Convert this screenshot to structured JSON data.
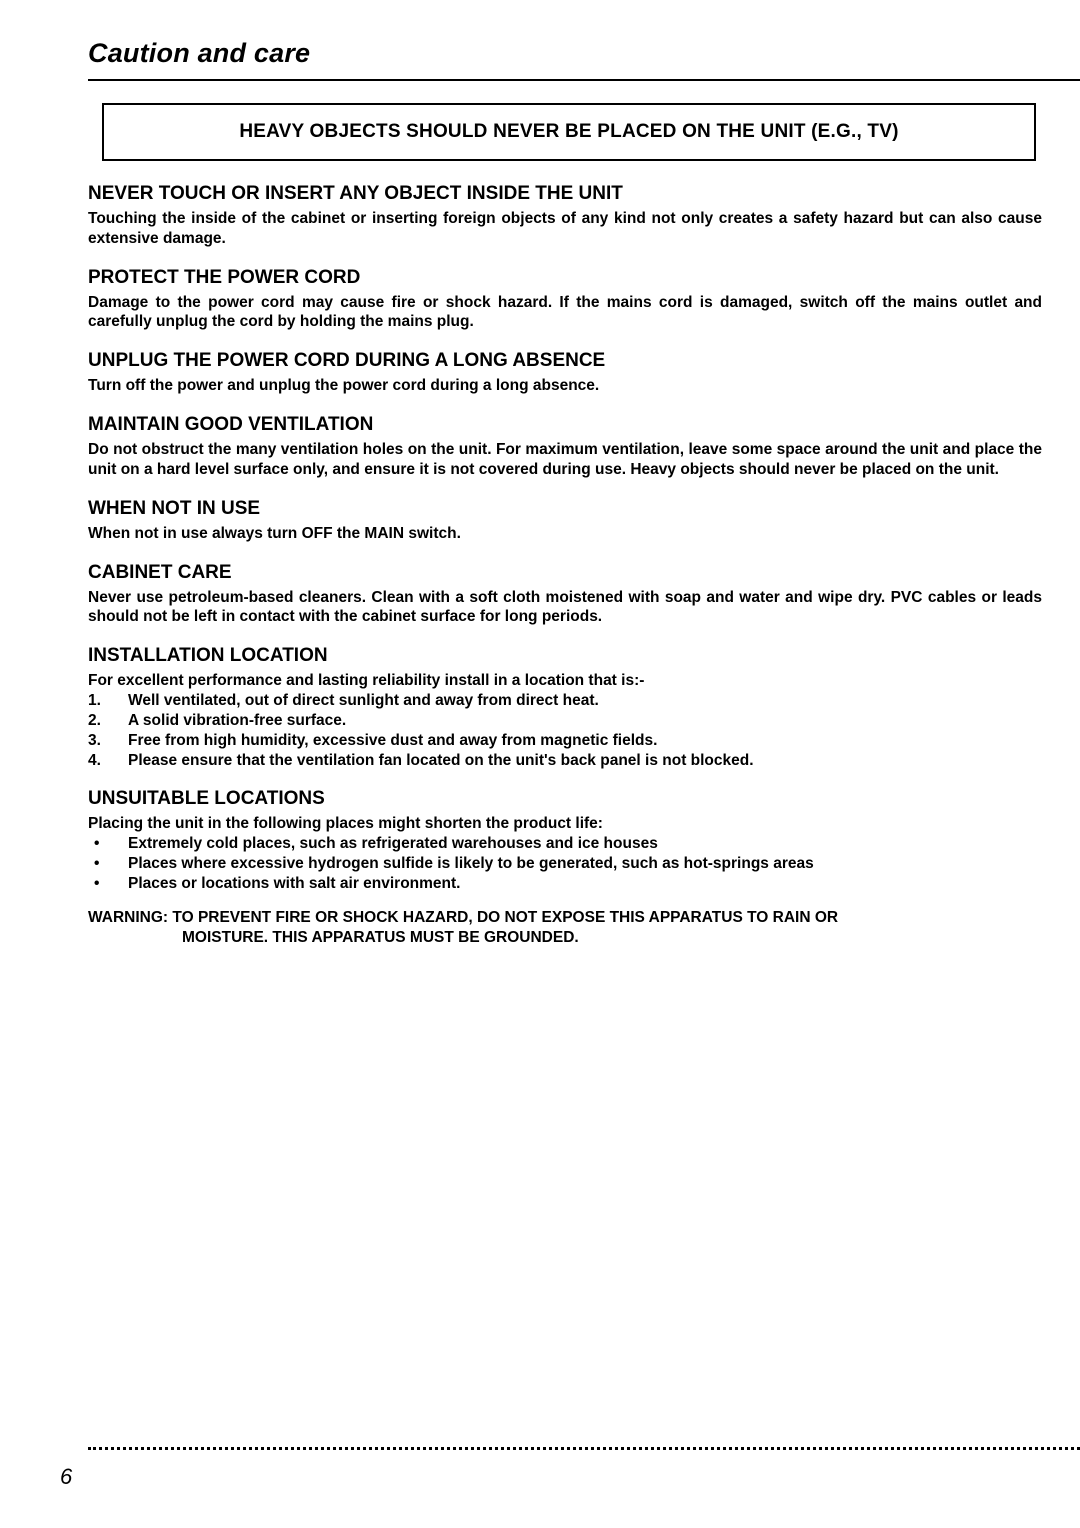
{
  "page": {
    "title": "Caution and care",
    "number": "6"
  },
  "boxed_notice": "HEAVY OBJECTS SHOULD NEVER BE PLACED ON THE UNIT (E.G., TV)",
  "sections": {
    "never_touch": {
      "heading": "NEVER TOUCH OR INSERT ANY OBJECT INSIDE THE UNIT",
      "body": "Touching the inside of the cabinet or inserting foreign objects of any kind not only creates a safety hazard but can also cause extensive damage."
    },
    "protect_cord": {
      "heading": "PROTECT THE POWER CORD",
      "body": "Damage to the power cord may cause fire or shock hazard.  If the mains cord is damaged, switch off the mains outlet and carefully unplug the cord by holding the mains plug."
    },
    "unplug": {
      "heading": "UNPLUG THE POWER CORD DURING A LONG ABSENCE",
      "body": "Turn off the power and unplug the power cord during a long absence."
    },
    "ventilation": {
      "heading": "MAINTAIN GOOD VENTILATION",
      "body": "Do not obstruct the many ventilation holes on the unit.  For maximum ventilation, leave some space around the unit and place the unit on a hard level surface only, and ensure it is not covered during use.  Heavy objects should never be placed on the unit."
    },
    "not_in_use": {
      "heading": "WHEN NOT IN USE",
      "body": "When not in use always turn OFF the MAIN switch."
    },
    "cabinet": {
      "heading": "CABINET CARE",
      "body": "Never use petroleum-based cleaners.  Clean with a soft cloth moistened with soap and water and wipe dry. PVC cables or leads should not be left in contact with the cabinet surface for long periods."
    },
    "install": {
      "heading": "INSTALLATION LOCATION",
      "intro": "For excellent performance and lasting reliability install in a location that is:-",
      "items": [
        "Well ventilated, out of direct sunlight and away from direct heat.",
        "A solid vibration-free surface.",
        "Free from high humidity, excessive dust and away from magnetic fields.",
        "Please ensure that the ventilation fan located on the unit's back panel is not blocked."
      ],
      "nums": [
        "1.",
        "2.",
        "3.",
        "4."
      ]
    },
    "unsuitable": {
      "heading": "UNSUITABLE LOCATIONS",
      "intro": "Placing the unit in the following places might shorten the product life:",
      "bullet": "•",
      "items": [
        "Extremely cold places, such as refrigerated warehouses and ice houses",
        "Places where excessive hydrogen sulfide is likely to be generated, such as hot-springs areas",
        "Places or locations with salt air environment."
      ]
    }
  },
  "warning": {
    "label": "WARNING:",
    "line1": "TO PREVENT FIRE OR SHOCK HAZARD, DO NOT EXPOSE THIS APPARATUS TO RAIN OR",
    "line2": "MOISTURE. THIS APPARATUS MUST BE GROUNDED."
  }
}
